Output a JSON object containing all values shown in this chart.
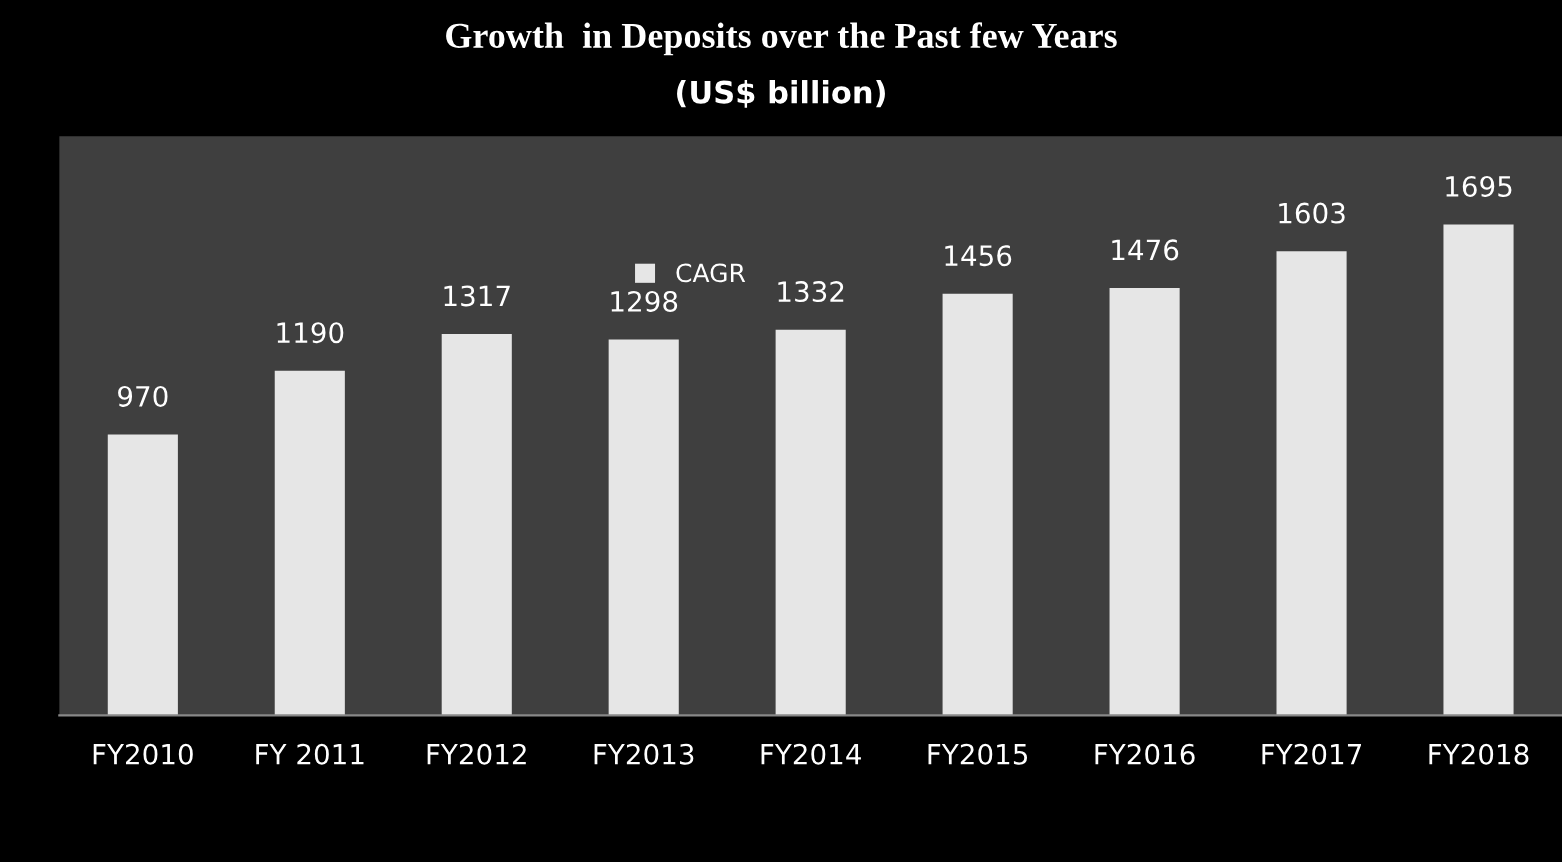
{
  "chart_data": {
    "type": "bar",
    "title": "Growth  in Deposits over the Past few Years",
    "subtitle": "(US$ billion)",
    "categories": [
      "FY2010",
      "FY 2011",
      "FY2012",
      "FY2013",
      "FY2014",
      "FY2015",
      "FY2016",
      "FY2017",
      "FY2018"
    ],
    "series": [
      {
        "name": "CAGR",
        "color": "#e6e6e6",
        "values": [
          970,
          1190,
          1317,
          1298,
          1332,
          1456,
          1476,
          1603,
          1695
        ]
      }
    ],
    "data_labels": true,
    "legend": "top",
    "grid": false
  }
}
